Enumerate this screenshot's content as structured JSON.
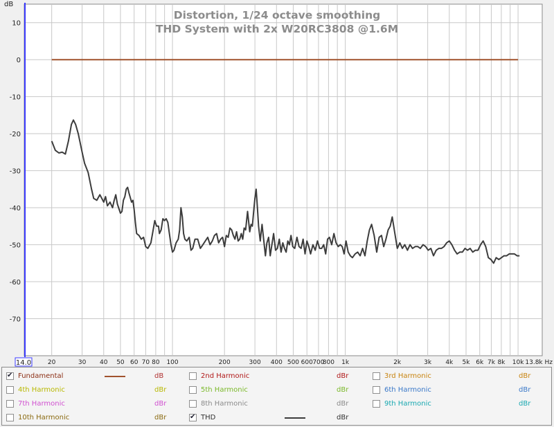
{
  "chart_data": {
    "type": "line",
    "title": "Distortion, 1/24 octave smoothing",
    "subtitle": "THD System with 2x  W20RC3808 @1.6M",
    "ylabel": "dB",
    "xlabel": "Hz",
    "x_scale": "log",
    "xlim": [
      14.0,
      13800
    ],
    "ylim": [
      -80,
      15
    ],
    "grid": true,
    "x_start_label": "14.0",
    "x_end_label": "13.8k Hz",
    "x_ticks": [
      {
        "v": 20,
        "l": "20"
      },
      {
        "v": 30,
        "l": "30"
      },
      {
        "v": 40,
        "l": "40"
      },
      {
        "v": 50,
        "l": "50"
      },
      {
        "v": 60,
        "l": "60"
      },
      {
        "v": 70,
        "l": "70"
      },
      {
        "v": 80,
        "l": "80"
      },
      {
        "v": 100,
        "l": "100"
      },
      {
        "v": 200,
        "l": "200"
      },
      {
        "v": 300,
        "l": "300"
      },
      {
        "v": 400,
        "l": "400"
      },
      {
        "v": 500,
        "l": "500"
      },
      {
        "v": 600,
        "l": "600"
      },
      {
        "v": 700,
        "l": "700"
      },
      {
        "v": 800,
        "l": "800"
      },
      {
        "v": 1000,
        "l": "1k"
      },
      {
        "v": 2000,
        "l": "2k"
      },
      {
        "v": 3000,
        "l": "3k"
      },
      {
        "v": 4000,
        "l": "4k"
      },
      {
        "v": 5000,
        "l": "5k"
      },
      {
        "v": 6000,
        "l": "6k"
      },
      {
        "v": 7000,
        "l": "7k"
      },
      {
        "v": 8000,
        "l": "8k"
      },
      {
        "v": 10000,
        "l": "10k"
      }
    ],
    "y_ticks": [
      10,
      0,
      -10,
      -20,
      -30,
      -40,
      -50,
      -60,
      -70
    ],
    "series": [
      {
        "name": "Fundamental",
        "color": "#a0522d",
        "points": [
          [
            20,
            0
          ],
          [
            10000,
            0
          ]
        ]
      },
      {
        "name": "THD",
        "color": "#3c3c3c",
        "points": [
          [
            20,
            -22
          ],
          [
            21,
            -24.5
          ],
          [
            22,
            -25.2
          ],
          [
            23,
            -25
          ],
          [
            24,
            -25.5
          ],
          [
            25,
            -22
          ],
          [
            26,
            -17.5
          ],
          [
            26.7,
            -16.3
          ],
          [
            27.5,
            -17.5
          ],
          [
            28.5,
            -20
          ],
          [
            30,
            -25
          ],
          [
            31,
            -28
          ],
          [
            32.5,
            -30.5
          ],
          [
            34,
            -35
          ],
          [
            35,
            -37.5
          ],
          [
            36.5,
            -38
          ],
          [
            38,
            -36.5
          ],
          [
            39,
            -37.5
          ],
          [
            40,
            -38.5
          ],
          [
            41,
            -37
          ],
          [
            42,
            -39.5
          ],
          [
            43.5,
            -38.5
          ],
          [
            45,
            -40
          ],
          [
            46,
            -38
          ],
          [
            47,
            -36.5
          ],
          [
            48,
            -39
          ],
          [
            50,
            -41.5
          ],
          [
            51,
            -41
          ],
          [
            52,
            -38
          ],
          [
            53,
            -37
          ],
          [
            54,
            -35
          ],
          [
            55,
            -34.5
          ],
          [
            56,
            -36
          ],
          [
            58,
            -38.5
          ],
          [
            59,
            -38
          ],
          [
            60,
            -40.5
          ],
          [
            61,
            -44
          ],
          [
            62,
            -47
          ],
          [
            64,
            -47.5
          ],
          [
            66,
            -48.5
          ],
          [
            68,
            -48
          ],
          [
            70,
            -50.5
          ],
          [
            72,
            -51
          ],
          [
            75,
            -49.5
          ],
          [
            77,
            -46.5
          ],
          [
            79,
            -43.5
          ],
          [
            81,
            -45
          ],
          [
            83,
            -45
          ],
          [
            84,
            -47
          ],
          [
            86,
            -46
          ],
          [
            88,
            -43
          ],
          [
            90,
            -43.5
          ],
          [
            92,
            -43
          ],
          [
            94,
            -44
          ],
          [
            96,
            -47
          ],
          [
            98,
            -50
          ],
          [
            100,
            -52
          ],
          [
            102,
            -51.5
          ],
          [
            105,
            -49.5
          ],
          [
            108,
            -48.5
          ],
          [
            110,
            -46
          ],
          [
            112,
            -40
          ],
          [
            114,
            -42.5
          ],
          [
            116,
            -47
          ],
          [
            118,
            -48.5
          ],
          [
            121,
            -49
          ],
          [
            125,
            -48
          ],
          [
            128,
            -51.5
          ],
          [
            131,
            -51
          ],
          [
            135,
            -48.5
          ],
          [
            140,
            -48.5
          ],
          [
            145,
            -51
          ],
          [
            150,
            -50
          ],
          [
            155,
            -49
          ],
          [
            160,
            -48
          ],
          [
            165,
            -50
          ],
          [
            170,
            -49
          ],
          [
            175,
            -47.5
          ],
          [
            180,
            -47
          ],
          [
            185,
            -49.5
          ],
          [
            190,
            -48.5
          ],
          [
            195,
            -48
          ],
          [
            200,
            -50.5
          ],
          [
            205,
            -47.5
          ],
          [
            210,
            -48
          ],
          [
            215,
            -45.5
          ],
          [
            220,
            -46
          ],
          [
            225,
            -47.5
          ],
          [
            230,
            -48.5
          ],
          [
            235,
            -46.5
          ],
          [
            240,
            -49
          ],
          [
            245,
            -48.5
          ],
          [
            250,
            -47
          ],
          [
            255,
            -48.5
          ],
          [
            260,
            -45.5
          ],
          [
            265,
            -46
          ],
          [
            272,
            -41
          ],
          [
            280,
            -46.5
          ],
          [
            285,
            -44.5
          ],
          [
            290,
            -45
          ],
          [
            295,
            -41
          ],
          [
            300,
            -37.5
          ],
          [
            305,
            -35
          ],
          [
            310,
            -40
          ],
          [
            315,
            -45
          ],
          [
            322,
            -49
          ],
          [
            330,
            -44.5
          ],
          [
            337,
            -48.5
          ],
          [
            345,
            -53
          ],
          [
            352,
            -49.5
          ],
          [
            360,
            -48
          ],
          [
            368,
            -53
          ],
          [
            376,
            -50
          ],
          [
            385,
            -47
          ],
          [
            395,
            -51.5
          ],
          [
            405,
            -51
          ],
          [
            415,
            -48.5
          ],
          [
            425,
            -52
          ],
          [
            435,
            -49.5
          ],
          [
            445,
            -51
          ],
          [
            455,
            -52
          ],
          [
            465,
            -49
          ],
          [
            475,
            -50
          ],
          [
            485,
            -47.5
          ],
          [
            497,
            -50.5
          ],
          [
            510,
            -51
          ],
          [
            525,
            -48
          ],
          [
            540,
            -50.5
          ],
          [
            555,
            -51
          ],
          [
            570,
            -48.5
          ],
          [
            585,
            -52.5
          ],
          [
            600,
            -49
          ],
          [
            615,
            -50.5
          ],
          [
            630,
            -52.5
          ],
          [
            650,
            -50
          ],
          [
            670,
            -51.5
          ],
          [
            690,
            -49
          ],
          [
            710,
            -51
          ],
          [
            730,
            -51
          ],
          [
            750,
            -50
          ],
          [
            770,
            -52.5
          ],
          [
            790,
            -48.5
          ],
          [
            810,
            -48
          ],
          [
            835,
            -50
          ],
          [
            860,
            -47
          ],
          [
            885,
            -49.5
          ],
          [
            910,
            -50.5
          ],
          [
            935,
            -50
          ],
          [
            960,
            -50.5
          ],
          [
            985,
            -52.5
          ],
          [
            1010,
            -49
          ],
          [
            1040,
            -52
          ],
          [
            1070,
            -53
          ],
          [
            1100,
            -53.5
          ],
          [
            1140,
            -52.5
          ],
          [
            1180,
            -52
          ],
          [
            1220,
            -53
          ],
          [
            1260,
            -51
          ],
          [
            1300,
            -53
          ],
          [
            1340,
            -49
          ],
          [
            1380,
            -46
          ],
          [
            1420,
            -44.5
          ],
          [
            1470,
            -47.5
          ],
          [
            1520,
            -52
          ],
          [
            1570,
            -48
          ],
          [
            1620,
            -47.5
          ],
          [
            1670,
            -50.5
          ],
          [
            1720,
            -48.5
          ],
          [
            1770,
            -46
          ],
          [
            1820,
            -45
          ],
          [
            1870,
            -42.5
          ],
          [
            1930,
            -46.5
          ],
          [
            2000,
            -51
          ],
          [
            2070,
            -49.5
          ],
          [
            2140,
            -51
          ],
          [
            2210,
            -50
          ],
          [
            2290,
            -51.5
          ],
          [
            2370,
            -50
          ],
          [
            2450,
            -51
          ],
          [
            2540,
            -50.5
          ],
          [
            2630,
            -50.5
          ],
          [
            2720,
            -51
          ],
          [
            2820,
            -50
          ],
          [
            2920,
            -50.5
          ],
          [
            3020,
            -51.5
          ],
          [
            3130,
            -51
          ],
          [
            3240,
            -53
          ],
          [
            3360,
            -51.5
          ],
          [
            3480,
            -51
          ],
          [
            3600,
            -51
          ],
          [
            3730,
            -50.5
          ],
          [
            3860,
            -49.5
          ],
          [
            4000,
            -49
          ],
          [
            4140,
            -50
          ],
          [
            4290,
            -51.5
          ],
          [
            4440,
            -52.5
          ],
          [
            4600,
            -52
          ],
          [
            4760,
            -52
          ],
          [
            4930,
            -51
          ],
          [
            5100,
            -51.5
          ],
          [
            5280,
            -51
          ],
          [
            5470,
            -52
          ],
          [
            5660,
            -51.5
          ],
          [
            5860,
            -51.5
          ],
          [
            6070,
            -50
          ],
          [
            6280,
            -49
          ],
          [
            6500,
            -50.5
          ],
          [
            6730,
            -53.5
          ],
          [
            6970,
            -54
          ],
          [
            7220,
            -55
          ],
          [
            7470,
            -53.5
          ],
          [
            7740,
            -54
          ],
          [
            8010,
            -53.5
          ],
          [
            8290,
            -53
          ],
          [
            8590,
            -53
          ],
          [
            8890,
            -52.5
          ],
          [
            9200,
            -52.5
          ],
          [
            9530,
            -52.5
          ],
          [
            9870,
            -53
          ],
          [
            10200,
            -53
          ]
        ]
      }
    ]
  },
  "legend": {
    "items": [
      {
        "name": "Fundamental",
        "unit": "dB",
        "checked": true,
        "color": "#8b2e14",
        "unit_color": "#b03030",
        "line_color": "#a0522d"
      },
      {
        "name": "2nd Harmonic",
        "unit": "dBr",
        "checked": false,
        "color": "#b01818",
        "unit_color": "#b01818",
        "line_color": ""
      },
      {
        "name": "3rd Harmonic",
        "unit": "dBr",
        "checked": false,
        "color": "#c88410",
        "unit_color": "#c88410",
        "line_color": ""
      },
      {
        "name": "4th Harmonic",
        "unit": "dBr",
        "checked": false,
        "color": "#b8b800",
        "unit_color": "#b8b800",
        "line_color": ""
      },
      {
        "name": "5th Harmonic",
        "unit": "dBr",
        "checked": false,
        "color": "#7ab828",
        "unit_color": "#7ab828",
        "line_color": ""
      },
      {
        "name": "6th Harmonic",
        "unit": "dBr",
        "checked": false,
        "color": "#3a78c8",
        "unit_color": "#3a78c8",
        "line_color": ""
      },
      {
        "name": "7th Harmonic",
        "unit": "dBr",
        "checked": false,
        "color": "#d050d0",
        "unit_color": "#d050d0",
        "line_color": ""
      },
      {
        "name": "8th Harmonic",
        "unit": "dBr",
        "checked": false,
        "color": "#8a8a8a",
        "unit_color": "#8a8a8a",
        "line_color": ""
      },
      {
        "name": "9th Harmonic",
        "unit": "dBr",
        "checked": false,
        "color": "#18a8b0",
        "unit_color": "#18a8b0",
        "line_color": ""
      },
      {
        "name": "10th Harmonic",
        "unit": "dBr",
        "checked": false,
        "color": "#8a6a10",
        "unit_color": "#8a6a10",
        "line_color": ""
      },
      {
        "name": "THD",
        "unit": "dBr",
        "checked": true,
        "color": "#303030",
        "unit_color": "#303030",
        "line_color": "#3c3c3c"
      }
    ]
  }
}
